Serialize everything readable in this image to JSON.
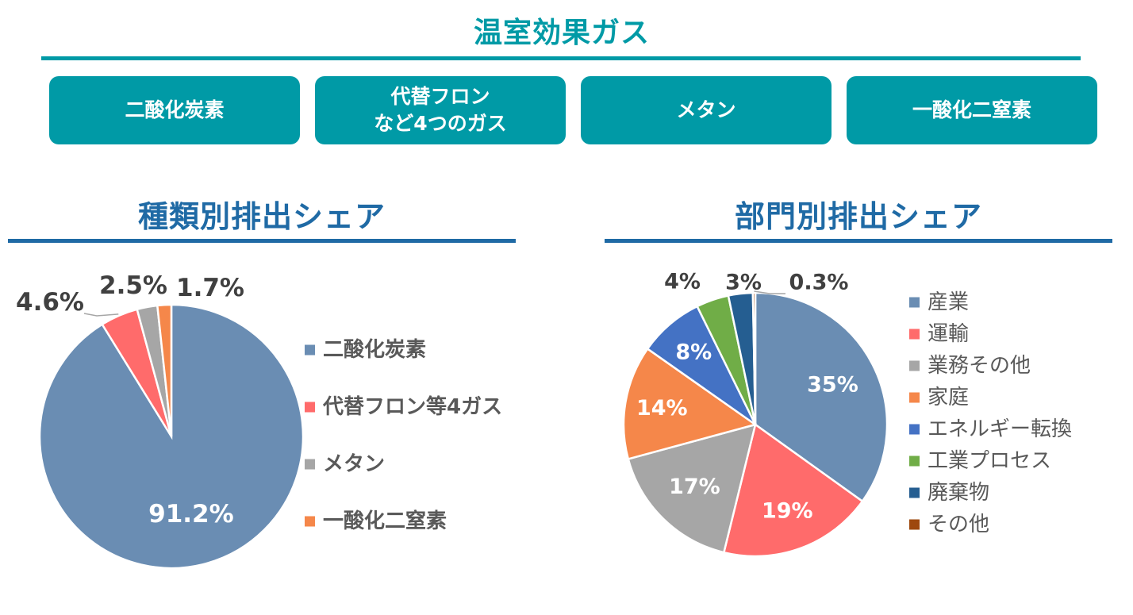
{
  "header": {
    "title": "温室効果ガス"
  },
  "gas_cards": [
    {
      "lines": [
        "二酸化炭素"
      ]
    },
    {
      "lines": [
        "代替フロン",
        "など4つのガス"
      ]
    },
    {
      "lines": [
        "メタン"
      ]
    },
    {
      "lines": [
        "一酸化二窒素"
      ]
    }
  ],
  "colors": {
    "accent": "#009aa6",
    "section": "#1f6aa5",
    "label_dark": "#404040",
    "legend_text": "#595959"
  },
  "chart_data": [
    {
      "type": "pie",
      "title": "種類別排出シェア",
      "categories": [
        "二酸化炭素",
        "代替フロン等4ガス",
        "メタン",
        "一酸化二窒素"
      ],
      "values": [
        91.2,
        4.6,
        2.5,
        1.7
      ],
      "data_labels": [
        "91.2%",
        "4.6%",
        "2.5%",
        "1.7%"
      ],
      "colors": [
        "#6a8db3",
        "#ff6b6b",
        "#a6a6a6",
        "#f5874a"
      ],
      "legend_position": "right"
    },
    {
      "type": "pie",
      "title": "部門別排出シェア",
      "categories": [
        "産業",
        "運輸",
        "業務その他",
        "家庭",
        "エネルギー転換",
        "工業プロセス",
        "廃棄物",
        "その他"
      ],
      "values": [
        35,
        19,
        17,
        14,
        8,
        4,
        3,
        0.3
      ],
      "data_labels": [
        "35%",
        "19%",
        "17%",
        "14%",
        "8%",
        "4%",
        "3%",
        "0.3%"
      ],
      "colors": [
        "#6a8db3",
        "#ff6b6b",
        "#a6a6a6",
        "#f5874a",
        "#4472c4",
        "#70ad47",
        "#255e91",
        "#9e480e"
      ],
      "legend_position": "right"
    }
  ]
}
